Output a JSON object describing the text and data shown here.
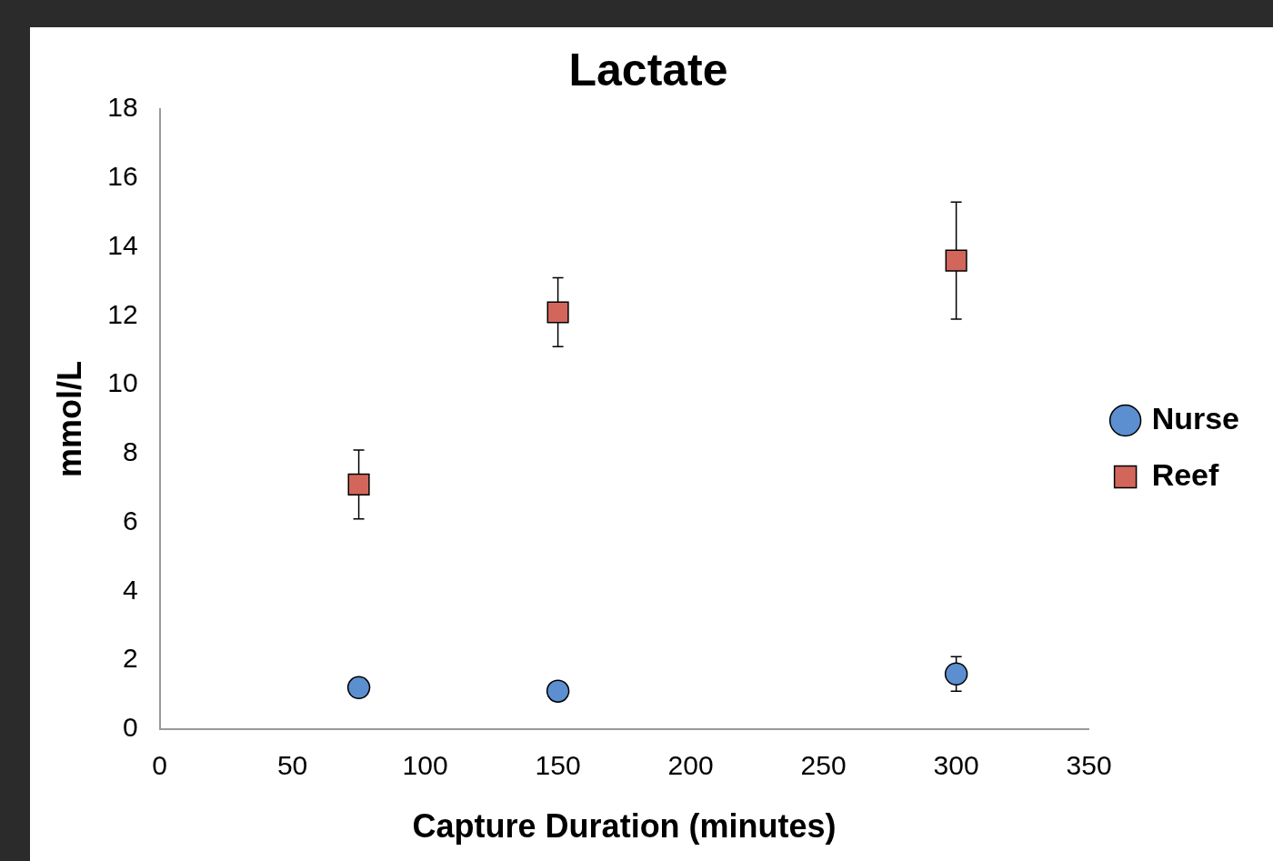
{
  "chart_data": {
    "type": "scatter",
    "title": "Lactate",
    "xlabel": "Capture Duration (minutes)",
    "ylabel": "mmol/L",
    "x": [
      75,
      150,
      300
    ],
    "series": [
      {
        "name": "Nurse",
        "color": "#5b8fd0",
        "marker": "circle",
        "values": [
          1.2,
          1.1,
          1.6
        ],
        "errors": [
          null,
          null,
          0.5
        ]
      },
      {
        "name": "Reef",
        "color": "#d2665a",
        "marker": "square",
        "values": [
          7.1,
          12.1,
          13.6
        ],
        "errors": [
          1.0,
          1.0,
          1.7
        ]
      }
    ],
    "xlim": [
      0,
      350
    ],
    "xticks": [
      0,
      50,
      100,
      150,
      200,
      250,
      300,
      350
    ],
    "ylim": [
      0,
      18
    ],
    "yticks": [
      0,
      2,
      4,
      6,
      8,
      10,
      12,
      14,
      16,
      18
    ],
    "grid": false,
    "legend": "right"
  }
}
